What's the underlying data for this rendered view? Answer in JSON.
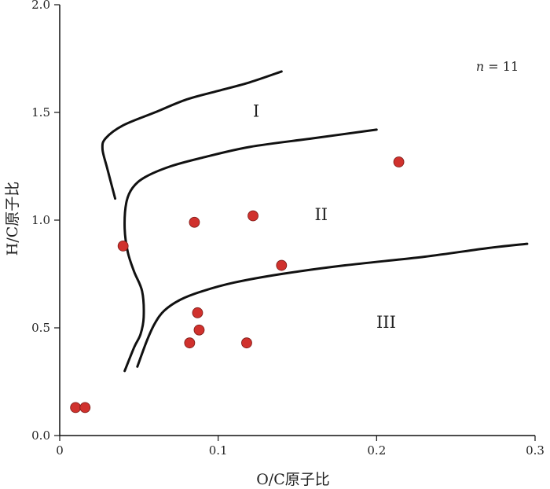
{
  "chart_data": {
    "type": "scatter",
    "title": "",
    "xlabel": "O/C原子比",
    "ylabel": "H/C原子比",
    "xlim": [
      0,
      0.3
    ],
    "ylim": [
      0,
      2.0
    ],
    "x_ticks": [
      0,
      0.1,
      0.2,
      0.3
    ],
    "x_tick_labels": [
      "0",
      "0.1",
      "0.2",
      "0.3"
    ],
    "y_ticks": [
      0,
      0.5,
      1.0,
      1.5,
      2.0
    ],
    "y_tick_labels": [
      "0.0",
      "0.5",
      "1.0",
      "1.5",
      "2.0"
    ],
    "grid": false,
    "legend": "none",
    "annotation": {
      "italic": "n",
      "rest": " = 11"
    },
    "marker_color": "#d0312d",
    "points": [
      {
        "x": 0.01,
        "y": 0.13
      },
      {
        "x": 0.016,
        "y": 0.13
      },
      {
        "x": 0.04,
        "y": 0.88
      },
      {
        "x": 0.082,
        "y": 0.43
      },
      {
        "x": 0.085,
        "y": 0.99
      },
      {
        "x": 0.087,
        "y": 0.57
      },
      {
        "x": 0.088,
        "y": 0.49
      },
      {
        "x": 0.118,
        "y": 0.43
      },
      {
        "x": 0.122,
        "y": 1.02
      },
      {
        "x": 0.14,
        "y": 0.79
      },
      {
        "x": 0.214,
        "y": 1.27
      }
    ],
    "boundary_curves": [
      {
        "label": "I",
        "label_pos": {
          "x": 0.124,
          "y": 1.48
        },
        "points": [
          [
            0.035,
            1.1
          ],
          [
            0.03,
            1.24
          ],
          [
            0.027,
            1.33
          ],
          [
            0.029,
            1.38
          ],
          [
            0.04,
            1.44
          ],
          [
            0.06,
            1.5
          ],
          [
            0.08,
            1.56
          ],
          [
            0.1,
            1.6
          ],
          [
            0.12,
            1.64
          ],
          [
            0.14,
            1.69
          ]
        ]
      },
      {
        "label": "II",
        "label_pos": {
          "x": 0.165,
          "y": 1.0
        },
        "points": [
          [
            0.041,
            0.3
          ],
          [
            0.047,
            0.41
          ],
          [
            0.051,
            0.47
          ],
          [
            0.053,
            0.55
          ],
          [
            0.052,
            0.67
          ],
          [
            0.047,
            0.76
          ],
          [
            0.043,
            0.85
          ],
          [
            0.041,
            0.96
          ],
          [
            0.042,
            1.08
          ],
          [
            0.046,
            1.15
          ],
          [
            0.054,
            1.2
          ],
          [
            0.07,
            1.25
          ],
          [
            0.09,
            1.29
          ],
          [
            0.12,
            1.34
          ],
          [
            0.16,
            1.38
          ],
          [
            0.2,
            1.42
          ]
        ]
      },
      {
        "label": "III",
        "label_pos": {
          "x": 0.206,
          "y": 0.5
        },
        "points": [
          [
            0.049,
            0.32
          ],
          [
            0.055,
            0.44
          ],
          [
            0.06,
            0.52
          ],
          [
            0.066,
            0.58
          ],
          [
            0.076,
            0.63
          ],
          [
            0.09,
            0.67
          ],
          [
            0.11,
            0.71
          ],
          [
            0.14,
            0.75
          ],
          [
            0.18,
            0.79
          ],
          [
            0.23,
            0.83
          ],
          [
            0.27,
            0.87
          ],
          [
            0.295,
            0.89
          ]
        ]
      }
    ]
  }
}
